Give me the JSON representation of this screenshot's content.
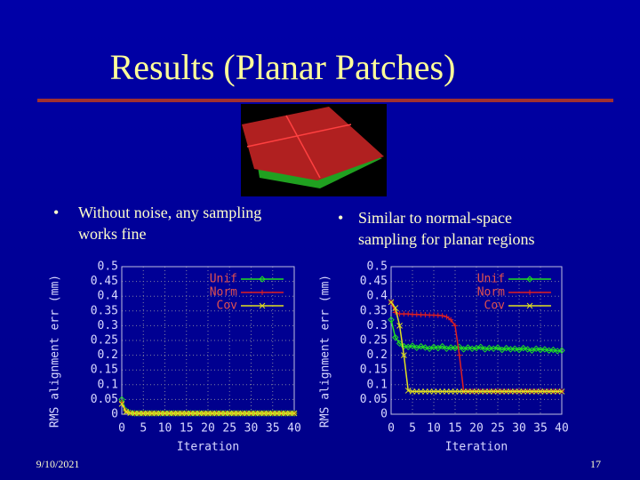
{
  "slide": {
    "title": "Results (Planar Patches)",
    "bullets": [
      [
        "Without noise, any sampling",
        "works fine"
      ],
      [
        "Similar to normal-space",
        "sampling for planar regions"
      ]
    ],
    "bullet_symbol": "•",
    "date": "9/10/2021",
    "page": "17"
  },
  "chart_data": [
    {
      "type": "line",
      "y_label": "RMS alignment err (mm)",
      "x_label": "Iteration",
      "xlim": [
        0,
        40
      ],
      "ylim": [
        0,
        0.5
      ],
      "xticks": [
        0,
        5,
        10,
        15,
        20,
        25,
        30,
        35,
        40
      ],
      "yticks": [
        0,
        0.05,
        0.1,
        0.15,
        0.2,
        0.25,
        0.3,
        0.35,
        0.4,
        0.45,
        0.5
      ],
      "grid": true,
      "legend": "upper right",
      "x": [
        0,
        1,
        2,
        3,
        4,
        5,
        6,
        7,
        8,
        9,
        10,
        11,
        12,
        13,
        14,
        15,
        16,
        17,
        18,
        19,
        20,
        21,
        22,
        23,
        24,
        25,
        26,
        27,
        28,
        29,
        30,
        31,
        32,
        33,
        34,
        35,
        36,
        37,
        38,
        39,
        40
      ],
      "series": [
        {
          "name": "Unif",
          "color": "#20e020",
          "marker": "diamond",
          "values": [
            0.05,
            0.012,
            0.005,
            0.003,
            0.003,
            0.003,
            0.003,
            0.003,
            0.003,
            0.003,
            0.003,
            0.003,
            0.003,
            0.003,
            0.003,
            0.003,
            0.003,
            0.003,
            0.003,
            0.003,
            0.003,
            0.003,
            0.003,
            0.003,
            0.003,
            0.003,
            0.003,
            0.003,
            0.003,
            0.003,
            0.003,
            0.003,
            0.003,
            0.003,
            0.003,
            0.003,
            0.003,
            0.003,
            0.003,
            0.003,
            0.003
          ]
        },
        {
          "name": "Norm",
          "color": "#e02020",
          "marker": "plus",
          "values": [
            0.04,
            0.01,
            0.004,
            0.003,
            0.003,
            0.003,
            0.003,
            0.003,
            0.003,
            0.003,
            0.003,
            0.003,
            0.003,
            0.003,
            0.003,
            0.003,
            0.003,
            0.003,
            0.003,
            0.003,
            0.003,
            0.003,
            0.003,
            0.003,
            0.003,
            0.003,
            0.003,
            0.003,
            0.003,
            0.003,
            0.003,
            0.003,
            0.003,
            0.003,
            0.003,
            0.003,
            0.003,
            0.003,
            0.003,
            0.003,
            0.003
          ]
        },
        {
          "name": "Cov",
          "color": "#e0e020",
          "marker": "x",
          "values": [
            0.035,
            0.008,
            0.004,
            0.003,
            0.003,
            0.003,
            0.003,
            0.003,
            0.003,
            0.003,
            0.003,
            0.003,
            0.003,
            0.003,
            0.003,
            0.003,
            0.003,
            0.003,
            0.003,
            0.003,
            0.003,
            0.003,
            0.003,
            0.003,
            0.003,
            0.003,
            0.003,
            0.003,
            0.003,
            0.003,
            0.003,
            0.003,
            0.003,
            0.003,
            0.003,
            0.003,
            0.003,
            0.003,
            0.003,
            0.003,
            0.003
          ]
        }
      ]
    },
    {
      "type": "line",
      "y_label": "RMS alignment err (mm)",
      "x_label": "Iteration",
      "xlim": [
        0,
        40
      ],
      "ylim": [
        0,
        0.5
      ],
      "xticks": [
        0,
        5,
        10,
        15,
        20,
        25,
        30,
        35,
        40
      ],
      "yticks": [
        0,
        0.05,
        0.1,
        0.15,
        0.2,
        0.25,
        0.3,
        0.35,
        0.4,
        0.45,
        0.5
      ],
      "grid": true,
      "legend": "upper right",
      "x": [
        0,
        1,
        2,
        3,
        4,
        5,
        6,
        7,
        8,
        9,
        10,
        11,
        12,
        13,
        14,
        15,
        16,
        17,
        18,
        19,
        20,
        21,
        22,
        23,
        24,
        25,
        26,
        27,
        28,
        29,
        30,
        31,
        32,
        33,
        34,
        35,
        36,
        37,
        38,
        39,
        40
      ],
      "series": [
        {
          "name": "Unif",
          "color": "#20e020",
          "marker": "diamond",
          "values": [
            0.32,
            0.26,
            0.24,
            0.23,
            0.228,
            0.232,
            0.225,
            0.23,
            0.226,
            0.222,
            0.228,
            0.224,
            0.23,
            0.222,
            0.226,
            0.224,
            0.228,
            0.22,
            0.226,
            0.222,
            0.224,
            0.228,
            0.22,
            0.224,
            0.222,
            0.226,
            0.218,
            0.224,
            0.22,
            0.222,
            0.218,
            0.224,
            0.22,
            0.216,
            0.222,
            0.218,
            0.22,
            0.216,
            0.218,
            0.214,
            0.216
          ]
        },
        {
          "name": "Norm",
          "color": "#e02020",
          "marker": "plus",
          "values": [
            0.38,
            0.345,
            0.34,
            0.34,
            0.34,
            0.338,
            0.338,
            0.337,
            0.337,
            0.336,
            0.336,
            0.335,
            0.334,
            0.33,
            0.32,
            0.3,
            0.2,
            0.078,
            0.078,
            0.078,
            0.078,
            0.078,
            0.078,
            0.078,
            0.078,
            0.078,
            0.078,
            0.078,
            0.078,
            0.078,
            0.078,
            0.078,
            0.078,
            0.078,
            0.078,
            0.078,
            0.078,
            0.078,
            0.078,
            0.078,
            0.078
          ]
        },
        {
          "name": "Cov",
          "color": "#e0e020",
          "marker": "x",
          "values": [
            0.38,
            0.36,
            0.3,
            0.2,
            0.08,
            0.077,
            0.077,
            0.077,
            0.077,
            0.077,
            0.077,
            0.077,
            0.077,
            0.077,
            0.077,
            0.077,
            0.077,
            0.077,
            0.077,
            0.077,
            0.077,
            0.077,
            0.077,
            0.077,
            0.077,
            0.077,
            0.077,
            0.077,
            0.077,
            0.077,
            0.077,
            0.077,
            0.077,
            0.077,
            0.077,
            0.077,
            0.077,
            0.077,
            0.077,
            0.077,
            0.077
          ]
        }
      ]
    }
  ]
}
